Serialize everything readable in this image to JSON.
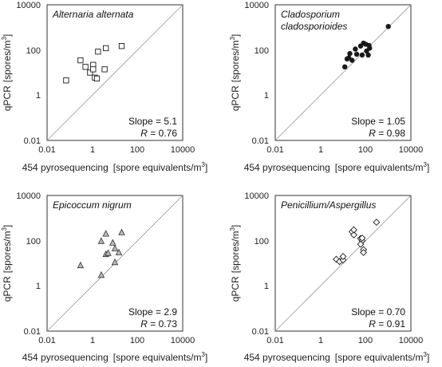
{
  "chart_data": [
    {
      "type": "scatter",
      "title": "Alternaria alternata",
      "title_lines": [
        "Alternaria alternata"
      ],
      "xlabel": "454 pyrosequencing",
      "xlabel_unit_prefix": "[spore equivalents/m",
      "ylabel": "qPCR",
      "ylabel_unit_prefix": "[spores/m",
      "unit_exponent": "3",
      "unit_suffix": "]",
      "x_scale": "log",
      "y_scale": "log",
      "xlim": [
        0.01,
        10000
      ],
      "ylim": [
        0.01,
        10000
      ],
      "xticks": [
        "0.01",
        "1",
        "100",
        "10000"
      ],
      "yticks": [
        "0.01",
        "1",
        "100",
        "10000"
      ],
      "reference_line": "1:1",
      "marker": "open-square",
      "slope_label": "Slope = ",
      "slope": "5.1",
      "r_label": "R",
      "r_eq": " = ",
      "r": "0.76",
      "series": [
        {
          "x": [
            0.07,
            0.3,
            0.5,
            0.8,
            1.1,
            1.3,
            1.6,
            3.5,
            20,
            4,
            1.1,
            1.8
          ],
          "y": [
            4.5,
            35,
            18,
            10,
            22,
            6,
            5.5,
            14,
            150,
            120,
            14,
            85
          ]
        }
      ]
    },
    {
      "type": "scatter",
      "title": "Cladosporium cladosporioides",
      "title_lines": [
        "Cladosporium",
        "cladosporioides"
      ],
      "xlabel": "454 pyrosequencing",
      "xlabel_unit_prefix": "[spore equivalents/m",
      "ylabel": "qPCR",
      "ylabel_unit_prefix": "[spores/m",
      "unit_exponent": "3",
      "unit_suffix": "]",
      "x_scale": "log",
      "y_scale": "log",
      "xlim": [
        0.01,
        10000
      ],
      "ylim": [
        0.01,
        10000
      ],
      "xticks": [
        "0.01",
        "1",
        "100",
        "10000"
      ],
      "yticks": [
        "0.01",
        "1",
        "100",
        "10000"
      ],
      "reference_line": "1:1",
      "marker": "filled-circle",
      "slope_label": "Slope = ",
      "slope": "1.05",
      "r_label": "R",
      "r_eq": " = ",
      "r": "0.98",
      "series": [
        {
          "x": [
            1000,
            100,
            140,
            110,
            80,
            150,
            130,
            60,
            20,
            18,
            15,
            25,
            12,
            40,
            35,
            70
          ],
          "y": [
            1100,
            180,
            160,
            90,
            200,
            120,
            60,
            150,
            70,
            45,
            40,
            35,
            18,
            65,
            110,
            60
          ]
        }
      ]
    },
    {
      "type": "scatter",
      "title": "Epicoccum nigrum",
      "title_lines": [
        "Epicoccum nigrum"
      ],
      "xlabel": "454 pyrosequencing",
      "xlabel_unit_prefix": "[spore equivalents/m",
      "ylabel": "qPCR",
      "ylabel_unit_prefix": "[spores/m",
      "unit_exponent": "3",
      "unit_suffix": "]",
      "x_scale": "log",
      "y_scale": "log",
      "xlim": [
        0.01,
        10000
      ],
      "ylim": [
        0.01,
        10000
      ],
      "xticks": [
        "0.01",
        "1",
        "100",
        "10000"
      ],
      "yticks": [
        "0.01",
        "1",
        "100",
        "10000"
      ],
      "reference_line": "1:1",
      "marker": "gray-triangle",
      "slope_label": "Slope = ",
      "slope": "2.9",
      "r_label": "R",
      "r_eq": " = ",
      "r": "0.73",
      "series": [
        {
          "x": [
            0.3,
            2.5,
            4,
            5,
            8,
            10,
            10,
            15,
            20,
            4,
            2.5
          ],
          "y": [
            8,
            3,
            25,
            28,
            80,
            45,
            11,
            30,
            230,
            200,
            95
          ]
        }
      ]
    },
    {
      "type": "scatter",
      "title": "Penicillium/Aspergillus",
      "title_lines": [
        "Penicillium/Aspergillus"
      ],
      "xlabel": "454 pyrosequencing",
      "xlabel_unit_prefix": "[spore equivalents/m",
      "ylabel": "qPCR",
      "ylabel_unit_prefix": "[spores/m",
      "unit_exponent": "3",
      "unit_suffix": "]",
      "x_scale": "log",
      "y_scale": "log",
      "xlim": [
        0.01,
        10000
      ],
      "ylim": [
        0.01,
        10000
      ],
      "xticks": [
        "0.01",
        "1",
        "100",
        "10000"
      ],
      "yticks": [
        "0.01",
        "1",
        "100",
        "10000"
      ],
      "reference_line": "1:1",
      "marker": "open-diamond",
      "slope_label": "Slope = ",
      "slope": "0.70",
      "r_label": "R",
      "r_eq": " = ",
      "r": "0.91",
      "series": [
        {
          "x": [
            5,
            7,
            10,
            10,
            25,
            30,
            30,
            60,
            70,
            80,
            80,
            60,
            70,
            300
          ],
          "y": [
            15,
            12,
            14,
            20,
            250,
            180,
            300,
            125,
            100,
            40,
            30,
            70,
            130,
            650
          ]
        }
      ]
    }
  ]
}
